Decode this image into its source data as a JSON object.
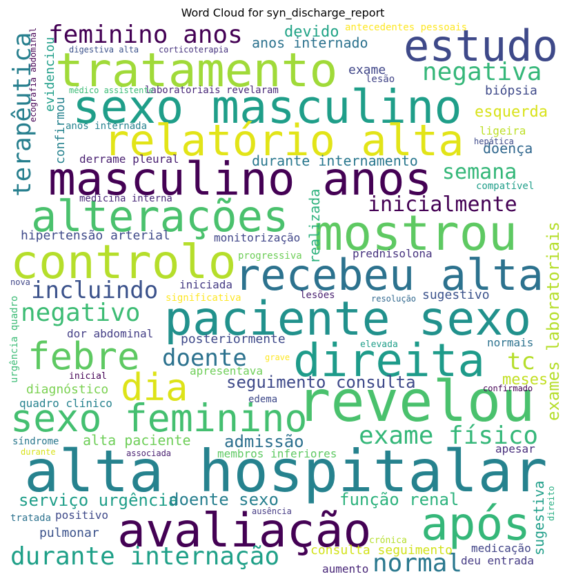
{
  "chart_data": {
    "type": "wordcloud",
    "title": "Word Cloud for syn_discharge_report",
    "words": [
      {
        "text": "feminino anos",
        "color": "#440154"
      },
      {
        "text": "estudo",
        "color": "#3e4989"
      },
      {
        "text": "tratamento",
        "color": "#a0da39"
      },
      {
        "text": "sexo masculino",
        "color": "#1f9e89"
      },
      {
        "text": "relatório alta",
        "color": "#e2e418"
      },
      {
        "text": "masculino anos",
        "color": "#440154"
      },
      {
        "text": "alterações",
        "color": "#4ac16d"
      },
      {
        "text": "mostrou",
        "color": "#5ec962"
      },
      {
        "text": "controlo",
        "color": "#b5de2b"
      },
      {
        "text": "recebeu alta",
        "color": "#2c728e"
      },
      {
        "text": "incluindo",
        "color": "#3b528b"
      },
      {
        "text": "paciente sexo",
        "color": "#21918c"
      },
      {
        "text": "negativo",
        "color": "#3dbc74"
      },
      {
        "text": "febre",
        "color": "#5ec962"
      },
      {
        "text": "doente",
        "color": "#2c728e"
      },
      {
        "text": "direita",
        "color": "#1e9b8a"
      },
      {
        "text": "tc",
        "color": "#b5de2b"
      },
      {
        "text": "dia",
        "color": "#dde318"
      },
      {
        "text": "seguimento consulta",
        "color": "#3e4989"
      },
      {
        "text": "meses",
        "color": "#c2df23"
      },
      {
        "text": "revelou",
        "color": "#4ac16d"
      },
      {
        "text": "sexo feminino",
        "color": "#44bf70"
      },
      {
        "text": "exame físico",
        "color": "#35b779"
      },
      {
        "text": "admissão",
        "color": "#2d708e"
      },
      {
        "text": "alta paciente",
        "color": "#6ece58"
      },
      {
        "text": "alta hospitalar",
        "color": "#26828e"
      },
      {
        "text": "serviço urgência",
        "color": "#1f9e89"
      },
      {
        "text": "doente sexo",
        "color": "#277f8e"
      },
      {
        "text": "função renal",
        "color": "#2db27d"
      },
      {
        "text": "avaliação",
        "color": "#440154"
      },
      {
        "text": "após",
        "color": "#35b779"
      },
      {
        "text": "durante internação",
        "color": "#1fa088"
      },
      {
        "text": "normal",
        "color": "#2a788e"
      },
      {
        "text": "consulta seguimento",
        "color": "#d2e21b"
      },
      {
        "text": "crónica",
        "color": "#b5de2b"
      },
      {
        "text": "medicação",
        "color": "#414487"
      },
      {
        "text": "deu entrada",
        "color": "#443a83"
      },
      {
        "text": "aumento",
        "color": "#482677"
      },
      {
        "text": "pulmonar",
        "color": "#3b528b"
      },
      {
        "text": "positivo",
        "color": "#3e4989"
      },
      {
        "text": "tratada",
        "color": "#2c728e"
      },
      {
        "text": "ausência",
        "color": "#443983"
      },
      {
        "text": "apesar",
        "color": "#472d7b"
      },
      {
        "text": "membros inferiores",
        "color": "#5ec962"
      },
      {
        "text": "síndrome",
        "color": "#2a788e"
      },
      {
        "text": "durante",
        "color": "#d8e219"
      },
      {
        "text": "associada",
        "color": "#481f70"
      },
      {
        "text": "quadro clínico",
        "color": "#26828e"
      },
      {
        "text": "edema",
        "color": "#3e4989"
      },
      {
        "text": "confirmado",
        "color": "#440154"
      },
      {
        "text": "diagnóstico",
        "color": "#7ad151"
      },
      {
        "text": "inicial",
        "color": "#440154"
      },
      {
        "text": "apresentava",
        "color": "#6ece58"
      },
      {
        "text": "grave",
        "color": "#fde725"
      },
      {
        "text": "elevada",
        "color": "#1f9e89"
      },
      {
        "text": "normais",
        "color": "#2c728e"
      },
      {
        "text": "posteriormente",
        "color": "#3e4989"
      },
      {
        "text": "dor abdominal",
        "color": "#433e85"
      },
      {
        "text": "sugestivo",
        "color": "#3b528b"
      },
      {
        "text": "resolução",
        "color": "#31688e"
      },
      {
        "text": "lesões",
        "color": "#481f70"
      },
      {
        "text": "significativa",
        "color": "#fde725"
      },
      {
        "text": "iniciada",
        "color": "#443a83"
      },
      {
        "text": "nova",
        "color": "#404688"
      },
      {
        "text": "progressiva",
        "color": "#6ece58"
      },
      {
        "text": "prednisolona",
        "color": "#46327e"
      },
      {
        "text": "hipertensão arterial",
        "color": "#3e4989"
      },
      {
        "text": "monitorização",
        "color": "#404688"
      },
      {
        "text": "medicina interna",
        "color": "#482878"
      },
      {
        "text": "inicialmente",
        "color": "#440154"
      },
      {
        "text": "semana",
        "color": "#35b779"
      },
      {
        "text": "compatível",
        "color": "#1f9e89"
      },
      {
        "text": "durante internamento",
        "color": "#2a788e"
      },
      {
        "text": "derrame pleural",
        "color": "#481f70"
      },
      {
        "text": "doença",
        "color": "#31688e"
      },
      {
        "text": "ligeira",
        "color": "#bddf26"
      },
      {
        "text": "esquerda",
        "color": "#d8e219"
      },
      {
        "text": "biópsia",
        "color": "#3e4989"
      },
      {
        "text": "negativa",
        "color": "#35b779"
      },
      {
        "text": "exame",
        "color": "#404688"
      },
      {
        "text": "lesão",
        "color": "#414487"
      },
      {
        "text": "laboratoriais revelaram",
        "color": "#482878"
      },
      {
        "text": "médico assistente",
        "color": "#3bbb75"
      },
      {
        "text": "anos internada",
        "color": "#26828e"
      },
      {
        "text": "devido",
        "color": "#20a386"
      },
      {
        "text": "antecedentes pessoais",
        "color": "#fde725"
      },
      {
        "text": "anos internado",
        "color": "#2c728e"
      },
      {
        "text": "digestiva alta",
        "color": "#3b528b"
      },
      {
        "text": "corticoterapia",
        "color": "#46337f"
      },
      {
        "text": "hepática",
        "color": "#3e4a89"
      },
      {
        "text": "direito",
        "color": "#26ad81"
      },
      {
        "text": "terapêutica",
        "color": "#277f8e"
      },
      {
        "text": "exames laboratoriais",
        "color": "#b5de2b"
      },
      {
        "text": "realizada",
        "color": "#2db27d"
      },
      {
        "text": "evidenciou",
        "color": "#1f9e89"
      },
      {
        "text": "confirmou",
        "color": "#26828e"
      },
      {
        "text": "ecografia abdominal",
        "color": "#440154"
      },
      {
        "text": "urgência quadro",
        "color": "#3bbb75"
      },
      {
        "text": "sugestiva",
        "color": "#1f9e89"
      }
    ]
  }
}
